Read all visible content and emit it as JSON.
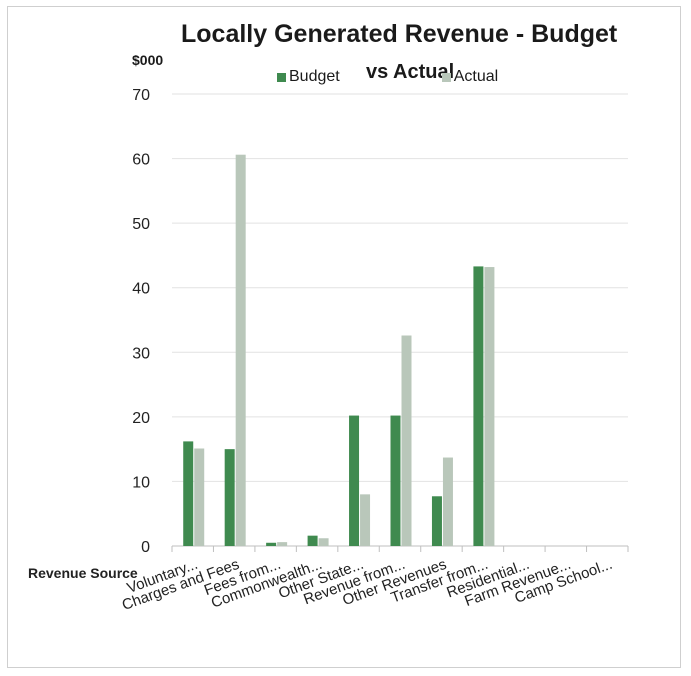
{
  "chart_data": {
    "type": "bar",
    "title": "Locally Generated Revenue - Budget vs Actual",
    "title_line1": "Locally Generated Revenue - Budget",
    "title_line2": "vs Actual",
    "ylabel": "$000",
    "xlabel": "Revenue Source",
    "ylim": [
      0,
      70
    ],
    "yticks": [
      0,
      10,
      20,
      30,
      40,
      50,
      60,
      70
    ],
    "grid": true,
    "legend_position": "top",
    "categories": [
      "Voluntary...",
      "Charges and Fees",
      "Fees from...",
      "Commonwealth...",
      "Other State...",
      "Revenue from...",
      "Other Revenues",
      "Transfer from...",
      "Residential...",
      "Farm Revenue...",
      "Camp School..."
    ],
    "series": [
      {
        "name": "Budget",
        "color": "#3f8a4f",
        "values": [
          16.2,
          15.0,
          0.5,
          1.6,
          20.2,
          20.2,
          7.7,
          43.3,
          0,
          0,
          0
        ]
      },
      {
        "name": "Actual",
        "color": "#b9c7ba",
        "values": [
          15.1,
          60.6,
          0.6,
          1.2,
          8.0,
          32.6,
          13.7,
          43.2,
          0,
          0,
          0
        ]
      }
    ]
  }
}
